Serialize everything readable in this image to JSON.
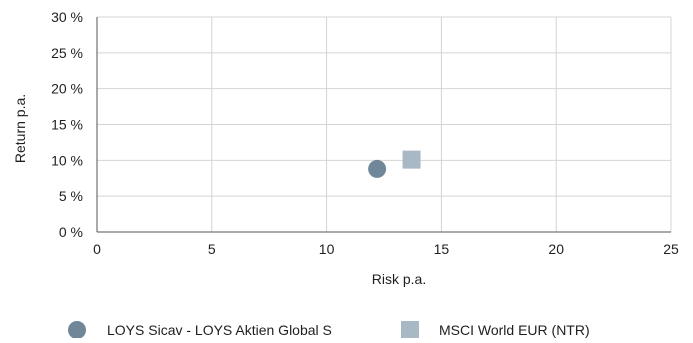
{
  "chart_data": {
    "type": "scatter",
    "title": "",
    "xlabel": "Risk p.a.",
    "ylabel": "Return p.a.",
    "xlim": [
      0,
      25
    ],
    "ylim": [
      0,
      30
    ],
    "x_ticks": [
      0,
      5,
      10,
      15,
      20,
      25
    ],
    "y_ticks": [
      0,
      5,
      10,
      15,
      20,
      25,
      30
    ],
    "x_tick_labels": [
      "0",
      "5",
      "10",
      "15",
      "20",
      "25"
    ],
    "y_tick_labels": [
      "0 %",
      "5 %",
      "10 %",
      "15 %",
      "20 %",
      "25 %",
      "30 %"
    ],
    "grid": true,
    "legend_position": "bottom",
    "series": [
      {
        "name": "LOYS Sicav - LOYS Aktien Global S",
        "marker": "circle",
        "color": "#6f8798",
        "x": 12.2,
        "y": 8.8
      },
      {
        "name": "MSCI World EUR (NTR)",
        "marker": "square",
        "color": "#a9b8c5",
        "x": 13.7,
        "y": 10.1
      }
    ]
  }
}
